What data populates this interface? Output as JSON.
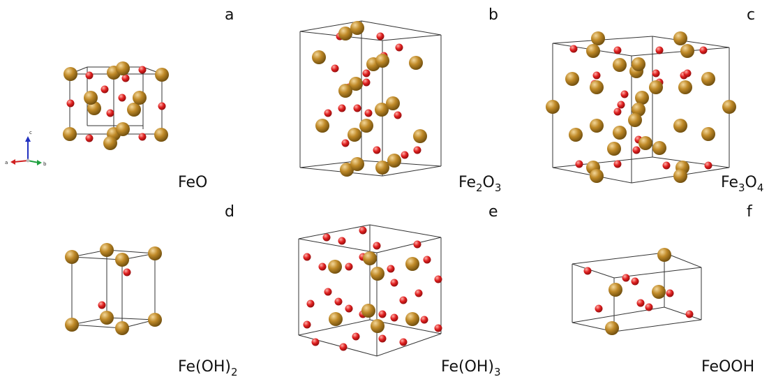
{
  "panels": [
    {
      "letter": "a",
      "formula": [
        "FeO"
      ]
    },
    {
      "letter": "b",
      "formula": [
        "Fe",
        "2",
        "O",
        "3"
      ]
    },
    {
      "letter": "c",
      "formula": [
        "Fe",
        "3",
        "O",
        "4"
      ]
    },
    {
      "letter": "d",
      "formula": [
        "Fe(OH)",
        "2"
      ]
    },
    {
      "letter": "e",
      "formula": [
        "Fe(OH)",
        "3"
      ]
    },
    {
      "letter": "f",
      "formula": [
        "FeOOH"
      ]
    }
  ],
  "axes": {
    "x": "a",
    "y": "b",
    "z": "c"
  }
}
